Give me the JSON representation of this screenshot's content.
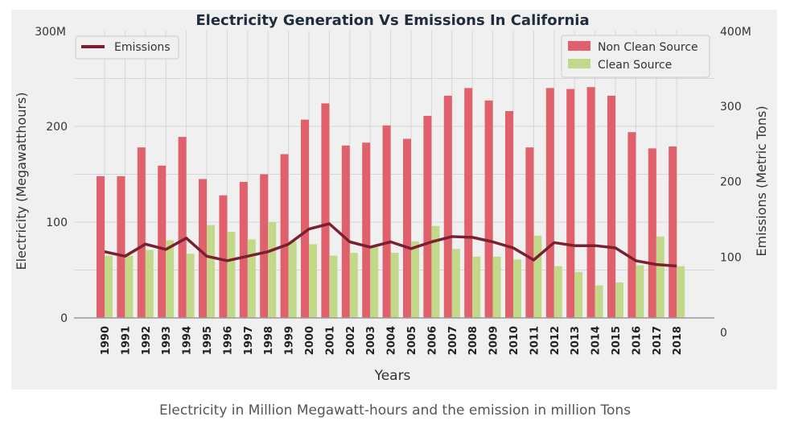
{
  "caption": "Electricity in Million Megawatt-hours and the emission in million Tons",
  "chart_data": {
    "type": "bar",
    "title": "Electricity Generation Vs Emissions In California",
    "xlabel": "Years",
    "ylabel": "Electricity (Megawatthours)",
    "y2label": "Emissions (Metric Tons)",
    "ylim": [
      0,
      300
    ],
    "y2lim": [
      0,
      400
    ],
    "y_ticks": [
      0,
      100,
      200
    ],
    "y_top_label": "300M",
    "y2_ticks": [
      100,
      200,
      300
    ],
    "y2_bottom_label": "0",
    "y2_top_label": "400M",
    "grid": true,
    "categories": [
      "1990",
      "1991",
      "1992",
      "1993",
      "1994",
      "1995",
      "1996",
      "1997",
      "1998",
      "1999",
      "2000",
      "2001",
      "2002",
      "2003",
      "2004",
      "2005",
      "2006",
      "2007",
      "2008",
      "2009",
      "2010",
      "2011",
      "2012",
      "2013",
      "2014",
      "2015",
      "2016",
      "2017",
      "2018"
    ],
    "series": [
      {
        "name": "Non Clean Source",
        "color": "#e0606c",
        "axis": "left",
        "values": [
          148,
          148,
          178,
          159,
          189,
          145,
          128,
          142,
          150,
          171,
          207,
          224,
          180,
          183,
          201,
          187,
          211,
          232,
          240,
          227,
          216,
          178,
          240,
          239,
          241,
          232,
          194,
          177,
          179
        ]
      },
      {
        "name": "Clean Source",
        "color": "#c3d98a",
        "axis": "left",
        "values": [
          65,
          65,
          71,
          81,
          67,
          97,
          90,
          82,
          100,
          80,
          77,
          65,
          68,
          74,
          68,
          80,
          96,
          72,
          64,
          64,
          61,
          86,
          54,
          48,
          34,
          37,
          55,
          85,
          54
        ]
      },
      {
        "name": "Emissions",
        "color": "#7a2030",
        "axis": "right",
        "type": "line",
        "values": [
          107,
          101,
          117,
          110,
          125,
          101,
          95,
          101,
          107,
          117,
          137,
          144,
          120,
          113,
          120,
          111,
          120,
          127,
          126,
          120,
          112,
          96,
          119,
          115,
          115,
          112,
          95,
          90,
          88
        ]
      }
    ],
    "legend_left": {
      "placement": "top-left",
      "entries": [
        "Emissions"
      ]
    },
    "legend_right": {
      "placement": "top-right",
      "entries": [
        "Non Clean Source",
        "Clean Source"
      ]
    }
  }
}
